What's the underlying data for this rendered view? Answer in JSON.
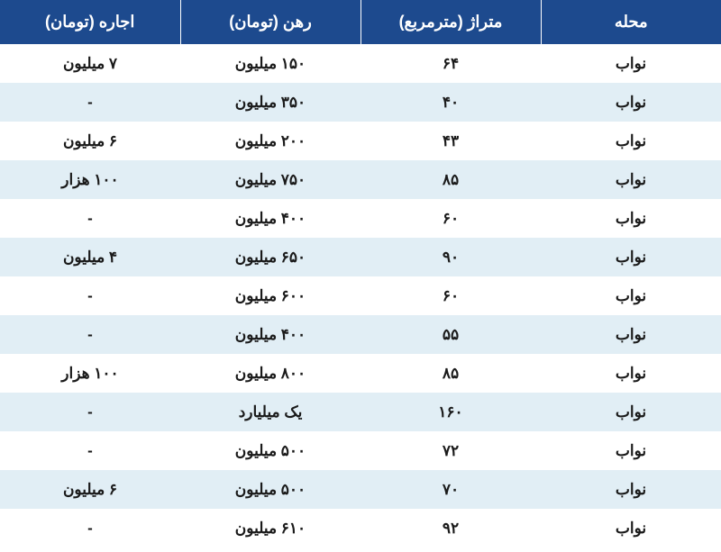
{
  "table": {
    "header_bg": "#1d4a8e",
    "header_fg": "#ffffff",
    "row_odd_bg": "#ffffff",
    "row_even_bg": "#e1eef5",
    "cell_fg": "#1a1a1a",
    "columns": [
      "محله",
      "متراژ (مترمربع)",
      "رهن (تومان)",
      "اجاره (تومان)"
    ],
    "rows": [
      [
        "نواب",
        "۶۴",
        "۱۵۰ میلیون",
        "۷ میلیون"
      ],
      [
        "نواب",
        "۴۰",
        "۳۵۰ میلیون",
        "-"
      ],
      [
        "نواب",
        "۴۳",
        "۲۰۰ میلیون",
        "۶ میلیون"
      ],
      [
        "نواب",
        "۸۵",
        "۷۵۰ میلیون",
        "۱۰۰ هزار"
      ],
      [
        "نواب",
        "۶۰",
        "۴۰۰ میلیون",
        "-"
      ],
      [
        "نواب",
        "۹۰",
        "۶۵۰ میلیون",
        "۴ میلیون"
      ],
      [
        "نواب",
        "۶۰",
        "۶۰۰ میلیون",
        "-"
      ],
      [
        "نواب",
        "۵۵",
        "۴۰۰ میلیون",
        "-"
      ],
      [
        "نواب",
        "۸۵",
        "۸۰۰ میلیون",
        "۱۰۰ هزار"
      ],
      [
        "نواب",
        "۱۶۰",
        "یک میلیارد",
        "-"
      ],
      [
        "نواب",
        "۷۲",
        "۵۰۰ میلیون",
        "-"
      ],
      [
        "نواب",
        "۷۰",
        "۵۰۰ میلیون",
        "۶ میلیون"
      ],
      [
        "نواب",
        "۹۲",
        "۶۱۰ میلیون",
        "-"
      ]
    ]
  }
}
